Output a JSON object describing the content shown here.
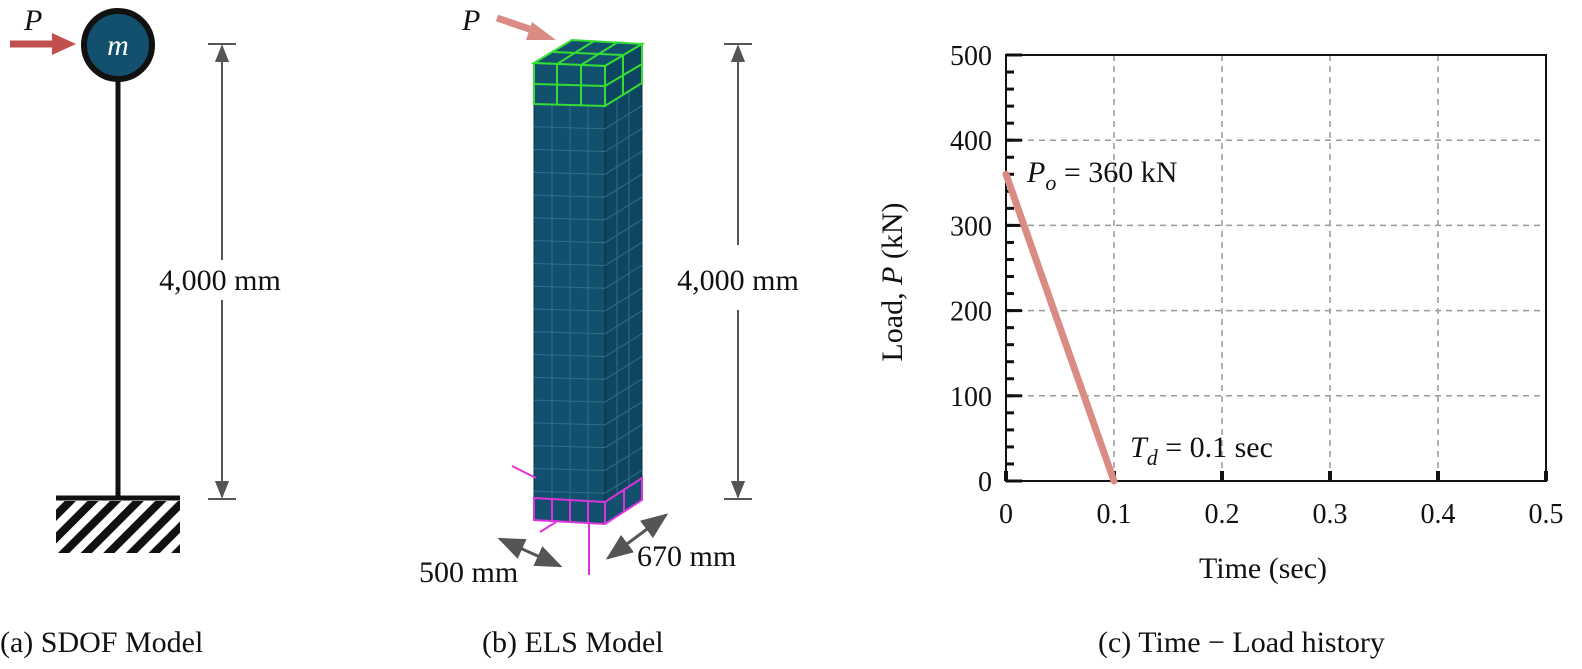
{
  "panel_a": {
    "load_symbol": "P",
    "mass_symbol": "m",
    "height_label": "4,000 mm",
    "caption": "(a) SDOF Model"
  },
  "panel_b": {
    "load_symbol": "P",
    "height_label": "4,000 mm",
    "width_label": "500 mm",
    "depth_label": "670 mm",
    "caption": "(b) ELS Model"
  },
  "panel_c": {
    "caption": "(c) Time − Load history",
    "annotation_po_symbol": "P",
    "annotation_po_sub": "o",
    "annotation_po_value": " = 360 kN",
    "annotation_td_symbol": "T",
    "annotation_td_sub": "d",
    "annotation_td_value": " = 0.1 sec"
  },
  "colors": {
    "arrow_red": "#c0504d",
    "arrow_pink": "#d98b84",
    "column_fill": "#12506e",
    "top_mesh": "#33dd33",
    "bottom_mesh": "#dd33dd",
    "load_line": "#d98b84"
  },
  "chart_data": {
    "type": "line",
    "xlabel": "Time (sec)",
    "ylabel_prefix": "Load, ",
    "ylabel_symbol": "P",
    "ylabel_suffix": " (kN)",
    "xlim": [
      0,
      0.5
    ],
    "ylim": [
      0,
      500
    ],
    "x_ticks": [
      "0",
      "0.1",
      "0.2",
      "0.3",
      "0.4",
      "0.5"
    ],
    "y_ticks": [
      "0",
      "100",
      "200",
      "300",
      "400",
      "500"
    ],
    "grid": true,
    "series": [
      {
        "x": [
          0,
          0.1
        ],
        "y": [
          360,
          0
        ]
      }
    ]
  }
}
